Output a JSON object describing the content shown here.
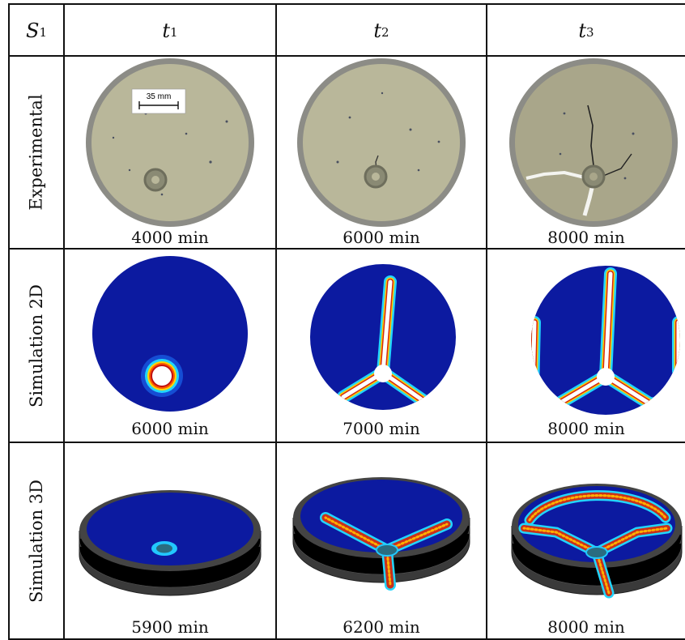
{
  "header": {
    "corner": {
      "letter": "S",
      "sub": "1"
    },
    "columns": [
      {
        "letter": "t",
        "sub": "1"
      },
      {
        "letter": "t",
        "sub": "2"
      },
      {
        "letter": "t",
        "sub": "3"
      }
    ]
  },
  "rows": [
    {
      "label": "Experimental",
      "scale_bar": "35 mm",
      "captions": [
        "4000 min",
        "6000 min",
        "8000 min"
      ]
    },
    {
      "label": "Simulation 2D",
      "captions": [
        "6000 min",
        "7000 min",
        "8000 min"
      ]
    },
    {
      "label": "Simulation 3D",
      "captions": [
        "5900 min",
        "6200 min",
        "8000 min"
      ]
    }
  ],
  "colors": {
    "sample_surface": "#b9b79a",
    "dish_rim": "#8c8c86",
    "sim_background": "#0c1aa0",
    "sim_crack_core": "#ffffff",
    "sim_crack_edge": "#d42a10",
    "mesh_side": "#3a3a3a"
  }
}
